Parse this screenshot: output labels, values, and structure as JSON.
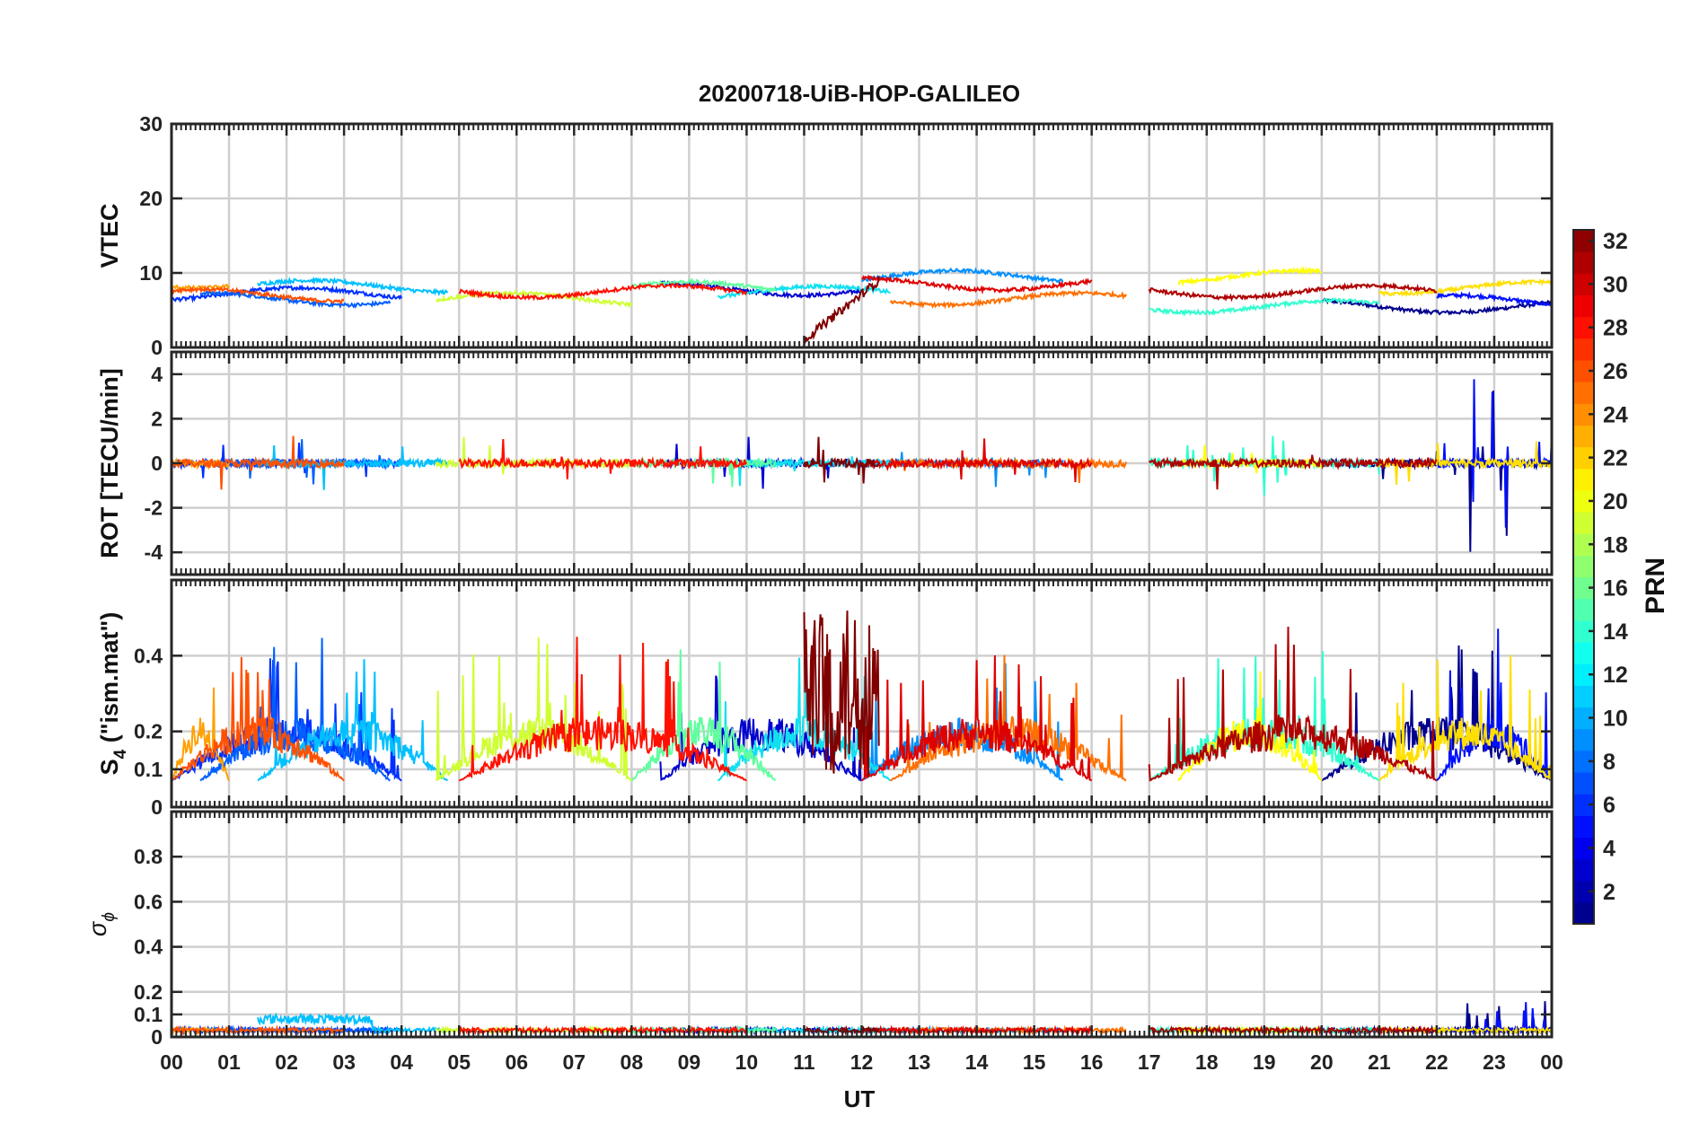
{
  "chart_data": {
    "type": "line",
    "title": "20200718-UiB-HOP-GALILEO",
    "xlabel": "UT",
    "x_tick_labels": [
      "00",
      "01",
      "02",
      "03",
      "04",
      "05",
      "06",
      "07",
      "08",
      "09",
      "10",
      "11",
      "12",
      "13",
      "14",
      "15",
      "16",
      "17",
      "18",
      "19",
      "20",
      "21",
      "22",
      "23",
      "00"
    ],
    "xlim": [
      0,
      24
    ],
    "panels": [
      {
        "id": "vtec",
        "ylabel": "VTEC",
        "ylim": [
          0,
          30
        ],
        "yticks": [
          0,
          10,
          20,
          30
        ],
        "ytick_labels": [
          "0",
          "10",
          "20",
          "30"
        ]
      },
      {
        "id": "rot",
        "ylabel": "ROT [TECU/min]",
        "ylim": [
          -5,
          5
        ],
        "yticks": [
          -4,
          -2,
          0,
          2,
          4
        ],
        "ytick_labels": [
          "-4",
          "-2",
          "0",
          "2",
          "4"
        ]
      },
      {
        "id": "s4",
        "ylabel_main": "S",
        "ylabel_sub": "4",
        "ylabel_rest": " (\"ism.mat\")",
        "ylim": [
          0,
          0.6
        ],
        "yticks": [
          0,
          0.1,
          0.2,
          0.4
        ],
        "ytick_labels": [
          "0",
          "0.1",
          "0.2",
          "0.4"
        ]
      },
      {
        "id": "sigma",
        "ylabel_main": "σ",
        "ylabel_sub": "ϕ",
        "ylim": [
          0,
          1
        ],
        "yticks": [
          0,
          0.1,
          0.2,
          0.4,
          0.6,
          0.8
        ],
        "ytick_labels": [
          "0",
          "0.1",
          "0.2",
          "0.4",
          "0.6",
          "0.8"
        ]
      }
    ],
    "colorbar": {
      "label": "PRN",
      "range": [
        1,
        32
      ],
      "tick_values": [
        2,
        4,
        6,
        8,
        10,
        12,
        14,
        16,
        18,
        20,
        22,
        24,
        26,
        28,
        30,
        32
      ],
      "tick_labels": [
        "2",
        "4",
        "6",
        "8",
        "10",
        "12",
        "14",
        "16",
        "18",
        "20",
        "22",
        "24",
        "26",
        "28",
        "30",
        "32"
      ],
      "colormap": "jet"
    },
    "series": [
      {
        "prn": 1,
        "color": "#00008f",
        "vtec_base": 5.5,
        "t_range": [
          20.0,
          24.0
        ]
      },
      {
        "prn": 3,
        "color": "#0000cf",
        "vtec_base": 7.8,
        "t_range": [
          8.5,
          12.0
        ]
      },
      {
        "prn": 4,
        "color": "#0010ff",
        "vtec_base": 6.2,
        "t_range": [
          22.0,
          24.0
        ]
      },
      {
        "prn": 5,
        "color": "#0030ff",
        "vtec_base": 7.2,
        "t_range": [
          0.0,
          4.0
        ]
      },
      {
        "prn": 7,
        "color": "#0060ff",
        "vtec_base": 6.5,
        "t_range": [
          0.5,
          3.8
        ]
      },
      {
        "prn": 9,
        "color": "#0090ff",
        "vtec_base": 9.5,
        "t_range": [
          12.0,
          15.5
        ]
      },
      {
        "prn": 11,
        "color": "#00c0ff",
        "vtec_base": 8.2,
        "t_range": [
          1.5,
          4.8
        ]
      },
      {
        "prn": 12,
        "color": "#10e0ef",
        "vtec_base": 7.4,
        "t_range": [
          9.5,
          12.5
        ]
      },
      {
        "prn": 13,
        "color": "#30ffcf",
        "vtec_base": 5.5,
        "t_range": [
          17.0,
          21.0
        ]
      },
      {
        "prn": 15,
        "color": "#60ff9f",
        "vtec_base": 8.0,
        "t_range": [
          8.0,
          10.5
        ]
      },
      {
        "prn": 19,
        "color": "#cfff30",
        "vtec_base": 6.5,
        "t_range": [
          4.6,
          8.0
        ]
      },
      {
        "prn": 20,
        "color": "#ffff00",
        "vtec_base": 9.5,
        "t_range": [
          17.5,
          20.0
        ]
      },
      {
        "prn": 21,
        "color": "#ffdf00",
        "vtec_base": 8.0,
        "t_range": [
          21.0,
          24.0
        ]
      },
      {
        "prn": 23,
        "color": "#ffa000",
        "vtec_base": 8.8,
        "t_range": [
          0.0,
          1.0
        ]
      },
      {
        "prn": 25,
        "color": "#ff7000",
        "vtec_base": 6.5,
        "t_range": [
          12.5,
          16.6
        ]
      },
      {
        "prn": 26,
        "color": "#ff5000",
        "vtec_base": 7.0,
        "t_range": [
          0.0,
          3.0
        ]
      },
      {
        "prn": 28,
        "color": "#ff1000",
        "vtec_base": 7.5,
        "t_range": [
          5.0,
          10.0
        ]
      },
      {
        "prn": 30,
        "color": "#df0000",
        "vtec_base": 8.5,
        "t_range": [
          12.0,
          16.0
        ]
      },
      {
        "prn": 31,
        "color": "#af0000",
        "vtec_base": 7.5,
        "t_range": [
          17.0,
          22.0
        ]
      },
      {
        "prn": 32,
        "color": "#800000",
        "vtec_base": 3.0,
        "t_range": [
          11.0,
          12.3
        ]
      }
    ]
  }
}
